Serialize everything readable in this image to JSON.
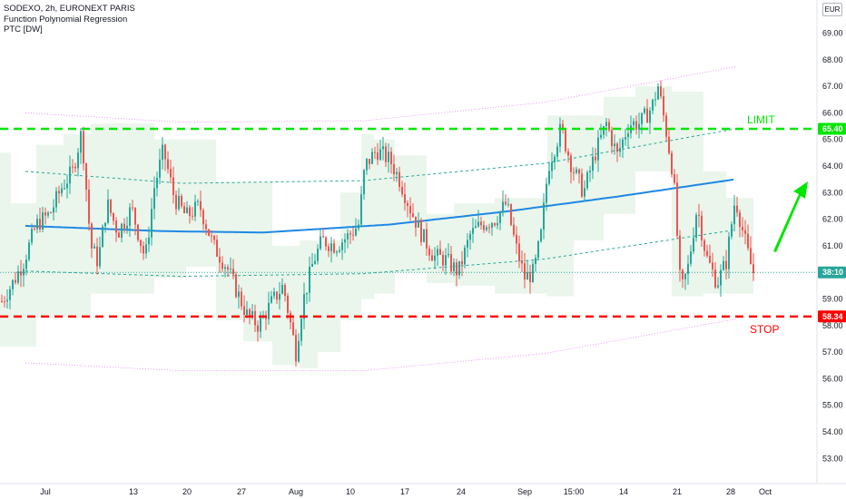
{
  "header": {
    "symbol_line": "SODEXO, 2h, EURONEXT PARIS",
    "indicator_1": "Function Polynomial Regression",
    "indicator_2": "PTC [DW]"
  },
  "currency_label": "EUR",
  "colors": {
    "up": "#26a69a",
    "down": "#ef5350",
    "limit": "#00e600",
    "stop": "#ff0000",
    "regression": "#1e88e5",
    "channel_fill": "#e8f5e9",
    "band": "#e040fb",
    "arrow": "#00e600",
    "price_tag": "#26a69a"
  },
  "chart_data": {
    "type": "candlestick",
    "title": "SODEXO, 2h, EURONEXT PARIS",
    "ylim": [
      52.2,
      70.2
    ],
    "y_ticks": [
      53,
      54,
      55,
      56,
      57,
      58,
      59,
      60,
      61,
      62,
      63,
      64,
      65,
      66,
      67,
      68,
      69
    ],
    "y_tick_labels": [
      "53.00",
      "54.00",
      "55.00",
      "56.00",
      "57.00",
      "58.00",
      "59.00",
      "60.00",
      "61.00",
      "62.00",
      "63.00",
      "64.00",
      "65.00",
      "66.00",
      "67.00",
      "68.00",
      "69.00"
    ],
    "x_ticks": [
      "Jul",
      "13",
      "20",
      "27",
      "Aug",
      "10",
      "17",
      "24",
      "Sep",
      "15:00",
      "14",
      "21",
      "28",
      "Oct"
    ],
    "limit": {
      "price": 65.4,
      "label": "LIMIT",
      "tag": "65.40"
    },
    "stop": {
      "price": 58.34,
      "label": "STOP",
      "tag": "58.34"
    },
    "last": {
      "price": 60,
      "tag": "38:10"
    },
    "price_path": [
      [
        0,
        58.8
      ],
      [
        14,
        59.6
      ],
      [
        26,
        60.4
      ],
      [
        40,
        61.8
      ],
      [
        55,
        62.2
      ],
      [
        68,
        63.2
      ],
      [
        80,
        63.8
      ],
      [
        90,
        65.3
      ],
      [
        100,
        61.0
      ],
      [
        108,
        60.4
      ],
      [
        118,
        62.6
      ],
      [
        130,
        61.5
      ],
      [
        145,
        62.4
      ],
      [
        160,
        60.5
      ],
      [
        170,
        63.2
      ],
      [
        180,
        64.6
      ],
      [
        192,
        62.8
      ],
      [
        205,
        62.1
      ],
      [
        220,
        62.5
      ],
      [
        235,
        61.0
      ],
      [
        250,
        60.2
      ],
      [
        262,
        59.2
      ],
      [
        272,
        58.4
      ],
      [
        285,
        58.0
      ],
      [
        298,
        58.8
      ],
      [
        312,
        59.5
      ],
      [
        326,
        57.0
      ],
      [
        333,
        58.8
      ],
      [
        345,
        60.4
      ],
      [
        355,
        61.2
      ],
      [
        370,
        61.0
      ],
      [
        385,
        61.4
      ],
      [
        395,
        61.8
      ],
      [
        402,
        64.0
      ],
      [
        415,
        64.6
      ],
      [
        430,
        64.2
      ],
      [
        440,
        63.5
      ],
      [
        452,
        62.4
      ],
      [
        465,
        61.4
      ],
      [
        478,
        60.6
      ],
      [
        490,
        60.5
      ],
      [
        505,
        60.0
      ],
      [
        518,
        61.4
      ],
      [
        530,
        61.8
      ],
      [
        545,
        62.0
      ],
      [
        558,
        62.6
      ],
      [
        568,
        61.0
      ],
      [
        578,
        59.8
      ],
      [
        588,
        60.0
      ],
      [
        596,
        61.4
      ],
      [
        604,
        64.0
      ],
      [
        618,
        65.4
      ],
      [
        630,
        64.0
      ],
      [
        643,
        63.0
      ],
      [
        655,
        64.4
      ],
      [
        668,
        65.6
      ],
      [
        680,
        64.4
      ],
      [
        693,
        65.6
      ],
      [
        705,
        65.6
      ],
      [
        718,
        66.2
      ],
      [
        725,
        67.0
      ],
      [
        733,
        65.5
      ],
      [
        742,
        63.6
      ],
      [
        750,
        59.2
      ],
      [
        758,
        60.2
      ],
      [
        768,
        62.5
      ],
      [
        778,
        60.6
      ],
      [
        790,
        59.6
      ],
      [
        800,
        60.4
      ],
      [
        810,
        62.8
      ],
      [
        818,
        61.6
      ],
      [
        826,
        60.4
      ],
      [
        830,
        60.0
      ]
    ],
    "regression_curve": [
      [
        28,
        61.75
      ],
      [
        180,
        61.55
      ],
      [
        290,
        61.5
      ],
      [
        430,
        61.8
      ],
      [
        560,
        62.3
      ],
      [
        680,
        62.85
      ],
      [
        810,
        63.5
      ]
    ],
    "inner_upper": [
      [
        28,
        63.8
      ],
      [
        200,
        63.35
      ],
      [
        400,
        63.45
      ],
      [
        600,
        64.1
      ],
      [
        810,
        65.4
      ]
    ],
    "inner_lower": [
      [
        28,
        60.05
      ],
      [
        200,
        59.85
      ],
      [
        400,
        59.95
      ],
      [
        600,
        60.5
      ],
      [
        810,
        61.6
      ]
    ],
    "outer_upper": [
      [
        28,
        66.0
      ],
      [
        200,
        65.65
      ],
      [
        400,
        65.7
      ],
      [
        600,
        66.4
      ],
      [
        812,
        67.75
      ]
    ],
    "outer_lower": [
      [
        28,
        56.6
      ],
      [
        200,
        56.3
      ],
      [
        400,
        56.3
      ],
      [
        600,
        56.95
      ],
      [
        812,
        58.25
      ]
    ],
    "ptc_steps": [
      [
        0,
        64.5,
        57.2
      ],
      [
        12,
        62.6,
        57.2
      ],
      [
        40,
        64.8,
        58.3
      ],
      [
        70,
        65.2,
        58.3
      ],
      [
        100,
        65.6,
        59.2
      ],
      [
        135,
        65.6,
        59.2
      ],
      [
        170,
        65.0,
        59.8
      ],
      [
        205,
        65.0,
        60.2
      ],
      [
        238,
        63.4,
        58.2
      ],
      [
        268,
        63.4,
        57.4
      ],
      [
        300,
        61.0,
        56.5
      ],
      [
        330,
        61.2,
        56.4
      ],
      [
        350,
        61.2,
        57.0
      ],
      [
        375,
        63.0,
        58.2
      ],
      [
        398,
        65.2,
        59.0
      ],
      [
        412,
        65.0,
        59.2
      ],
      [
        435,
        64.4,
        60.0
      ],
      [
        470,
        62.2,
        59.6
      ],
      [
        500,
        62.6,
        59.5
      ],
      [
        545,
        62.8,
        59.2
      ],
      [
        575,
        62.8,
        59.2
      ],
      [
        603,
        65.9,
        59.1
      ],
      [
        632,
        65.9,
        61.2
      ],
      [
        665,
        66.6,
        62.2
      ],
      [
        700,
        67.0,
        63.8
      ],
      [
        740,
        66.8,
        59.1
      ],
      [
        775,
        63.8,
        59.2
      ],
      [
        800,
        62.8,
        59.2
      ],
      [
        830,
        62.8,
        59.2
      ]
    ]
  }
}
